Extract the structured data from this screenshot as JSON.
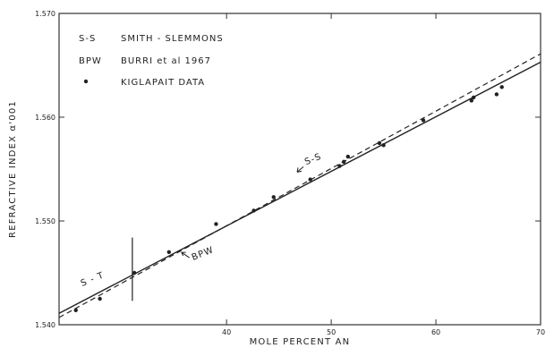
{
  "chart_data": {
    "type": "scatter",
    "xlabel": "MOLE PERCENT AN",
    "ylabel": "REFRACTIVE INDEX α'001",
    "xlim": [
      24,
      70
    ],
    "ylim": [
      1.54,
      1.57
    ],
    "x_ticks": [
      40,
      50,
      60,
      70
    ],
    "x_tick_labels": [
      "40",
      "50",
      "60",
      "70"
    ],
    "y_ticks": [
      1.54,
      1.55,
      1.56,
      1.57
    ],
    "y_tick_labels": [
      "1.540",
      "1.550",
      "1.560",
      "1.570"
    ],
    "grid": false,
    "legend_position": "top-left",
    "legend": [
      {
        "key": "S-S",
        "label": "SMITH - SLEMMONS"
      },
      {
        "key": "BPW",
        "label": "BURRI et al 1967"
      },
      {
        "key": "•",
        "label": "KIGLAPAIT DATA"
      }
    ],
    "series": [
      {
        "name": "SMITH - SLEMMONS",
        "style": "solid",
        "x": [
          24,
          70
        ],
        "y": [
          1.5411,
          1.5653
        ]
      },
      {
        "name": "BURRI et al 1967",
        "style": "dashed",
        "x": [
          24,
          70
        ],
        "y": [
          1.5407,
          1.5661
        ]
      },
      {
        "name": "KIGLAPAIT DATA",
        "style": "points",
        "x": [
          25.6,
          27.9,
          31.2,
          34.5,
          39.0,
          42.6,
          44.5,
          48.0,
          50.8,
          51.2,
          51.6,
          54.6,
          55.0,
          58.8,
          63.4,
          63.6,
          65.8,
          66.3
        ],
        "y": [
          1.5414,
          1.5425,
          1.545,
          1.547,
          1.5497,
          1.551,
          1.5523,
          1.554,
          1.5553,
          1.5557,
          1.5562,
          1.5575,
          1.5573,
          1.5597,
          1.5616,
          1.5619,
          1.5622,
          1.5629
        ]
      }
    ],
    "annotations": [
      {
        "text": "S-S",
        "x": 47.6,
        "y": 1.5554
      },
      {
        "text": "BPW",
        "x": 36.8,
        "y": 1.5462
      },
      {
        "text": "S - T",
        "x": 26.2,
        "y": 1.5437
      }
    ],
    "marker": {
      "x": 31
    }
  }
}
